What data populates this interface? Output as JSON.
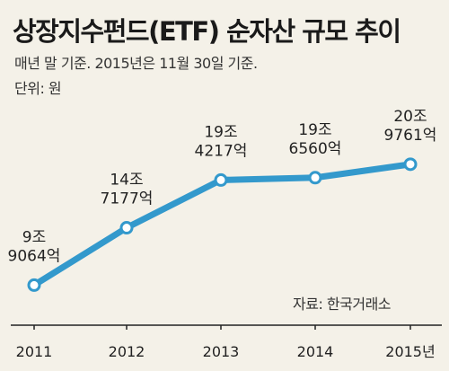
{
  "header": {
    "title": "상장지수펀드(ETF) 순자산 규모 추이",
    "subtitle": "매년 말 기준. 2015년은 11월 30일 기준.",
    "unit": "단위: 원"
  },
  "source": "자료: 한국거래소",
  "chart_data": {
    "type": "line",
    "title": "상장지수펀드(ETF) 순자산 규모 추이",
    "xlabel": "",
    "ylabel": "",
    "categories": [
      "2011",
      "2012",
      "2013",
      "2014",
      "2015년"
    ],
    "values": [
      90640000000000,
      147177000000000,
      194217000000000,
      196560000000000,
      209761000000000
    ],
    "data_labels": [
      [
        "9조",
        "9064억"
      ],
      [
        "14조",
        "7177억"
      ],
      [
        "19조",
        "4217억"
      ],
      [
        "19조",
        "6560억"
      ],
      [
        "20조",
        "9761억"
      ]
    ],
    "ylim": [
      60000000000000,
      230000000000000
    ],
    "grid": false,
    "legend": "none",
    "colors": {
      "line": "#3399cc",
      "marker_fill": "#ffffff",
      "axis": "#222222",
      "background": "#f4f1e8"
    }
  }
}
